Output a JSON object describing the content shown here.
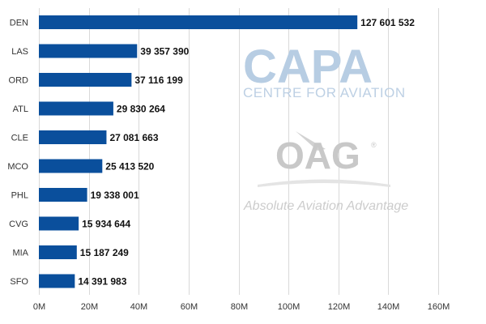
{
  "chart_data": {
    "type": "bar",
    "orientation": "horizontal",
    "categories": [
      "DEN",
      "LAS",
      "ORD",
      "ATL",
      "CLE",
      "MCO",
      "PHL",
      "CVG",
      "MIA",
      "SFO"
    ],
    "values": [
      127601532,
      39357390,
      37116199,
      29830264,
      27081663,
      25413520,
      19338001,
      15934644,
      15187249,
      14391983
    ],
    "value_labels": [
      "127 601 532",
      "39 357 390",
      "37 116 199",
      "29 830 264",
      "27 081 663",
      "25 413 520",
      "19 338 001",
      "15 934 644",
      "15 187 249",
      "14 391 983"
    ],
    "x_ticks": [
      0,
      20000000,
      40000000,
      60000000,
      80000000,
      100000000,
      120000000,
      140000000,
      160000000
    ],
    "x_tick_labels": [
      "0M",
      "20M",
      "40M",
      "60M",
      "80M",
      "100M",
      "120M",
      "140M",
      "160M"
    ],
    "xlim": [
      0,
      160000000
    ],
    "title": "",
    "xlabel": "",
    "ylabel": "",
    "grid": "vertical",
    "legend": "none",
    "bar_color": "#0a4f9c"
  },
  "watermarks": {
    "capa": "CAPA",
    "capa_sub": "CENTRE FOR AVIATION",
    "oag": "OAG",
    "oag_reg": "®",
    "oag_tag": "Absolute Aviation Advantage"
  },
  "colors": {
    "grid": "#d9d9d9",
    "capa": "#b7cde3",
    "oag": "#c8c8c8"
  }
}
